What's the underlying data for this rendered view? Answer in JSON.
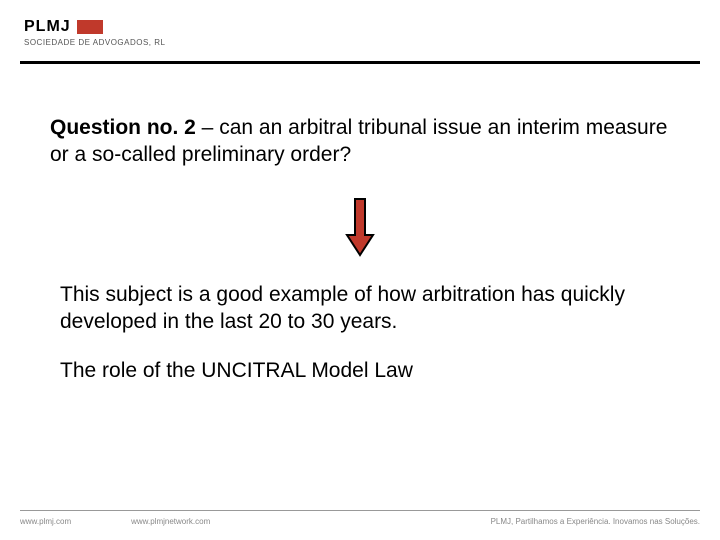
{
  "header": {
    "logo_text": "PLMJ",
    "logo_color": "#c0392b",
    "subtitle": "SOCIEDADE DE ADVOGADOS, RL"
  },
  "content": {
    "question_label": "Question no. 2",
    "question_text": " – can an arbitral tribunal issue an interim measure or a so-called preliminary order?",
    "paragraph1": "This subject is a good example of how arbitration has quickly developed in the last 20 to 30 years.",
    "paragraph2": "The role of the UNCITRAL Model Law"
  },
  "arrow": {
    "fill": "#c0392b",
    "stroke": "#000000",
    "stroke_width": 2,
    "width": 30,
    "height": 60
  },
  "footer": {
    "url1": "www.plmj.com",
    "url2": "www.plmjnetwork.com",
    "tagline": "PLMJ, Partilhamos a Experiência. Inovamos nas Soluções."
  },
  "colors": {
    "text": "#000000",
    "background": "#ffffff",
    "divider": "#000000",
    "footer_text": "#888888"
  }
}
